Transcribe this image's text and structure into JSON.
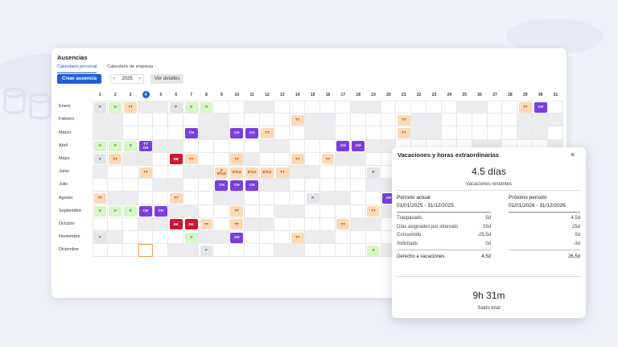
{
  "header": {
    "title": "Ausencias",
    "tabs": [
      "Calendario personal",
      "Calendario de empresa"
    ],
    "create_button": "Crear ausencia",
    "year": "2025",
    "details_button": "Ver detalles"
  },
  "calendar": {
    "days": [
      1,
      2,
      3,
      4,
      5,
      6,
      7,
      8,
      9,
      10,
      11,
      12,
      13,
      14,
      15,
      16,
      17,
      18,
      19,
      20,
      21,
      22,
      23,
      24,
      25,
      26,
      27,
      28,
      29,
      30,
      31
    ],
    "today": 4,
    "styles": {
      "V": {
        "bg": "#d8f5c6",
        "fg": "#2f7a1c"
      },
      "TT": {
        "bg": "#fdd9b5",
        "fg": "#9a4e10"
      },
      "CH": {
        "bg": "#7a3ee0",
        "fg": "#ffffff"
      },
      "F": {
        "bg": "#e3e4e7",
        "fg": "#555555"
      },
      "BE": {
        "bg": "#d21530",
        "fg": "#ffffff"
      },
      "ETc2": {
        "bg": "#fdd9b5",
        "fg": "#9a4e10"
      }
    },
    "months": [
      {
        "name": "Enero",
        "events": [
          {
            "day": 1,
            "lines": [
              "F"
            ]
          },
          {
            "day": 2,
            "lines": [
              "V"
            ]
          },
          {
            "day": 3,
            "lines": [
              "TT"
            ]
          },
          {
            "day": 6,
            "lines": [
              "F"
            ]
          },
          {
            "day": 7,
            "lines": [
              "V"
            ]
          },
          {
            "day": 8,
            "lines": [
              "V"
            ]
          },
          {
            "day": 29,
            "lines": [
              "TT"
            ]
          },
          {
            "day": 30,
            "lines": [
              "CH"
            ]
          }
        ]
      },
      {
        "name": "Febrero",
        "events": [
          {
            "day": 14,
            "lines": [
              "TT"
            ]
          },
          {
            "day": 21,
            "lines": [
              "TT"
            ]
          }
        ]
      },
      {
        "name": "Marzo",
        "events": [
          {
            "day": 7,
            "lines": [
              "CH"
            ]
          },
          {
            "day": 10,
            "lines": [
              "CH"
            ]
          },
          {
            "day": 11,
            "lines": [
              "CH"
            ]
          },
          {
            "day": 12,
            "lines": [
              "TT"
            ]
          },
          {
            "day": 21,
            "lines": [
              "TT"
            ]
          }
        ]
      },
      {
        "name": "Abril",
        "events": [
          {
            "day": 1,
            "lines": [
              "V"
            ]
          },
          {
            "day": 2,
            "lines": [
              "V"
            ]
          },
          {
            "day": 3,
            "lines": [
              "V"
            ]
          },
          {
            "day": 4,
            "lines": [
              "TT",
              "CH"
            ]
          },
          {
            "day": 17,
            "lines": [
              "CH"
            ]
          },
          {
            "day": 18,
            "lines": [
              "CH"
            ]
          }
        ]
      },
      {
        "name": "Mayo",
        "events": [
          {
            "day": 1,
            "lines": [
              "F"
            ]
          },
          {
            "day": 2,
            "lines": [
              "TT"
            ]
          },
          {
            "day": 6,
            "lines": [
              "BE"
            ]
          },
          {
            "day": 7,
            "lines": [
              "TT"
            ]
          },
          {
            "day": 10,
            "lines": [
              "TT"
            ]
          },
          {
            "day": 14,
            "lines": [
              "TT"
            ]
          },
          {
            "day": 16,
            "lines": [
              "TT"
            ]
          }
        ]
      },
      {
        "name": "Junio",
        "events": [
          {
            "day": 4,
            "lines": [
              "TT"
            ]
          },
          {
            "day": 9,
            "lines": [
              "F",
              "ETc2"
            ]
          },
          {
            "day": 10,
            "lines": [
              "ETc2"
            ]
          },
          {
            "day": 11,
            "lines": [
              "ETc2"
            ]
          },
          {
            "day": 12,
            "lines": [
              "ETc2"
            ]
          },
          {
            "day": 13,
            "lines": [
              "TT"
            ]
          },
          {
            "day": 19,
            "lines": [
              "F"
            ]
          }
        ]
      },
      {
        "name": "Julio",
        "events": [
          {
            "day": 9,
            "lines": [
              "CH"
            ]
          },
          {
            "day": 10,
            "lines": [
              "CH"
            ]
          },
          {
            "day": 11,
            "lines": [
              "CH"
            ]
          }
        ]
      },
      {
        "name": "Agosto",
        "events": [
          {
            "day": 1,
            "lines": [
              "TT"
            ]
          },
          {
            "day": 6,
            "lines": [
              "TT"
            ]
          },
          {
            "day": 15,
            "lines": [
              "F"
            ]
          },
          {
            "day": 20,
            "lines": [
              "CH"
            ]
          }
        ]
      },
      {
        "name": "Septiembre",
        "events": [
          {
            "day": 1,
            "lines": [
              "V"
            ]
          },
          {
            "day": 2,
            "lines": [
              "V"
            ]
          },
          {
            "day": 3,
            "lines": [
              "V"
            ]
          },
          {
            "day": 4,
            "lines": [
              "CH"
            ]
          },
          {
            "day": 5,
            "lines": [
              "CH"
            ]
          },
          {
            "day": 10,
            "lines": [
              "TT"
            ]
          },
          {
            "day": 19,
            "lines": [
              "TT"
            ]
          }
        ]
      },
      {
        "name": "Octubre",
        "events": [
          {
            "day": 6,
            "lines": [
              "BE"
            ]
          },
          {
            "day": 7,
            "lines": [
              "BE"
            ]
          },
          {
            "day": 8,
            "lines": [
              "TT"
            ]
          },
          {
            "day": 10,
            "lines": [
              "TT"
            ]
          },
          {
            "day": 17,
            "lines": [
              "TT"
            ]
          }
        ]
      },
      {
        "name": "Noviembre",
        "events": [
          {
            "day": 1,
            "lines": [
              "F"
            ]
          },
          {
            "day": 7,
            "lines": [
              "V"
            ]
          },
          {
            "day": 10,
            "lines": [
              "CH"
            ]
          },
          {
            "day": 14,
            "lines": [
              "TT"
            ]
          }
        ]
      },
      {
        "name": "Diciembre",
        "events": [
          {
            "day": 8,
            "lines": [
              "F"
            ]
          },
          {
            "day": 19,
            "lines": [
              "V"
            ]
          }
        ]
      }
    ]
  },
  "popup": {
    "title": "Vacaciones y horas extraordinarias",
    "remaining": "4.5 días",
    "remaining_label": "Vacaciones restantes",
    "current": {
      "title": "Periodo actual",
      "range": "01/01/2025 - 31/12/2025",
      "rows": [
        {
          "label": "Traspasado",
          "value": "5d"
        },
        {
          "label": "Días asignados por intervalo",
          "value": "25d"
        },
        {
          "label": "Consumido",
          "value": "-25,5d"
        },
        {
          "label": "Solicitado",
          "value": "0d"
        }
      ],
      "total_label": "Derecho a vacaciones",
      "total": "4,5d"
    },
    "next": {
      "title": "Próximo periodo",
      "range": "01/01/2026 - 31/12/2026",
      "values": [
        "4,5d",
        "25d",
        "0d",
        "-3d"
      ],
      "total": "26,5d"
    },
    "balance": "9h 31m",
    "balance_label": "Saldo total"
  }
}
